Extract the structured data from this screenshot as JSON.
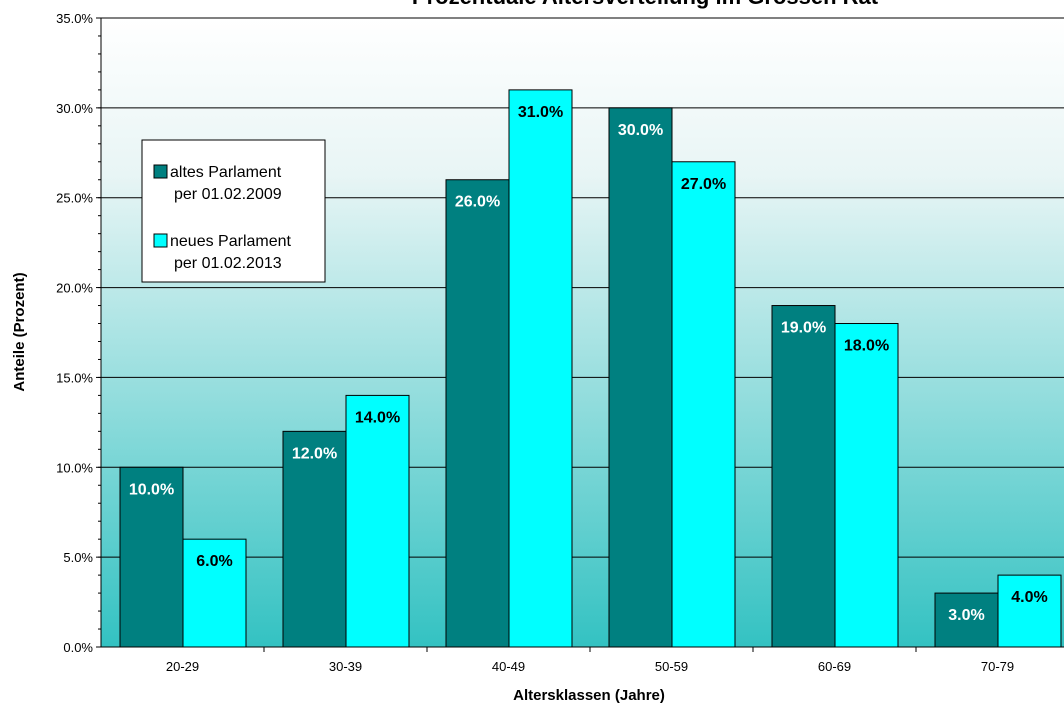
{
  "chart_data": {
    "type": "bar",
    "title": "Prozentuale Altersverteilung im Grossen Rat",
    "xlabel": "Altersklassen (Jahre)",
    "ylabel": "Anteile (Prozent)",
    "categories": [
      "20-29",
      "30-39",
      "40-49",
      "50-59",
      "60-69",
      "70-79"
    ],
    "ylim": [
      0,
      35
    ],
    "yticks": [
      0,
      5,
      10,
      15,
      20,
      25,
      30,
      35
    ],
    "ytick_labels": [
      "0.0%",
      "5.0%",
      "10.0%",
      "15.0%",
      "20.0%",
      "25.0%",
      "30.0%",
      "35.0%"
    ],
    "grid": true,
    "legend_position": "upper-left",
    "series": [
      {
        "name": "altes Parlament per 01.02.2009",
        "legend_lines": [
          "altes Parlament",
          "per 01.02.2009"
        ],
        "color": "#008080",
        "label_color": "#ffffff",
        "values": [
          10,
          12,
          26,
          30,
          19,
          3
        ],
        "data_labels": [
          "10.0%",
          "12.0%",
          "26.0%",
          "30.0%",
          "19.0%",
          "3.0%"
        ]
      },
      {
        "name": "neues Parlament per 01.02.2013",
        "legend_lines": [
          "neues Parlament",
          "per 01.02.2013"
        ],
        "color": "#00ffff",
        "label_color": "#000000",
        "values": [
          6,
          14,
          31,
          27,
          18,
          4
        ],
        "data_labels": [
          "6.0%",
          "14.0%",
          "31.0%",
          "27.0%",
          "18.0%",
          "4.0%"
        ]
      }
    ]
  }
}
